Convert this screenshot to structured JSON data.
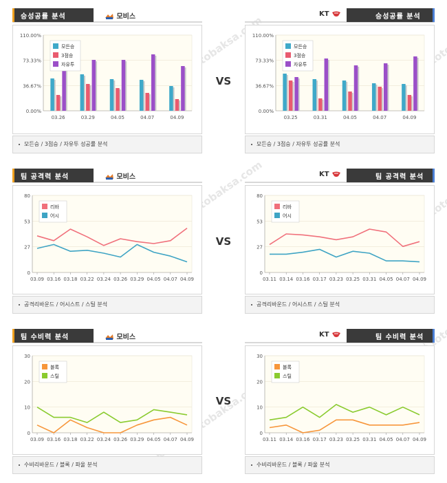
{
  "vs_label": "VS",
  "watermark": "토토박사 totobaksa.com",
  "colors": {
    "header": "#3a3a3a",
    "accent_left": "#f0a01e",
    "accent_right": "#4a7fd6"
  },
  "panels": [
    {
      "id": "p1",
      "title": "승성공률 분석",
      "team": "모비스",
      "icon": "mobis-logo-icon",
      "side": "left",
      "footer": "모든승 / 3점승 / 자유투 성공률 분석",
      "chart_data": {
        "type": "bar",
        "categories": [
          "03.26",
          "03.29",
          "04.05",
          "04.07",
          "04.09"
        ],
        "yticks": [
          "110.00%",
          "73.33%",
          "36.67%",
          "0.00%"
        ],
        "ylim": [
          0,
          110
        ],
        "series": [
          {
            "name": "모든승",
            "color": "#3fa9c9",
            "values": [
              47,
              53,
              46,
              45,
              36
            ]
          },
          {
            "name": "3점승",
            "color": "#e95b6f",
            "values": [
              23,
              39,
              33,
              26,
              17
            ]
          },
          {
            "name": "자유투",
            "color": "#9b4fc8",
            "values": [
              62,
              74,
              74,
              82,
              65
            ]
          }
        ]
      }
    },
    {
      "id": "p2",
      "title": "승성공률 분석",
      "team": "KT",
      "icon": "kt-logo-icon",
      "side": "right",
      "footer": "모든승 / 3점승 / 자유투 성공률 분석",
      "chart_data": {
        "type": "bar",
        "categories": [
          "03.25",
          "03.31",
          "04.05",
          "04.07",
          "04.09"
        ],
        "yticks": [
          "110.00%",
          "73.33%",
          "36.67%",
          "0.00%"
        ],
        "ylim": [
          0,
          110
        ],
        "series": [
          {
            "name": "모든승",
            "color": "#3fa9c9",
            "values": [
              54,
              46,
              44,
              40,
              39
            ]
          },
          {
            "name": "3점승",
            "color": "#e95b6f",
            "values": [
              44,
              18,
              28,
              35,
              23
            ]
          },
          {
            "name": "자유투",
            "color": "#9b4fc8",
            "values": [
              49,
              76,
              66,
              69,
              79
            ]
          }
        ]
      }
    },
    {
      "id": "p3",
      "title": "팀 공격력 분석",
      "team": "모비스",
      "icon": "mobis-logo-icon",
      "side": "left",
      "footer": "공격리바운드 / 어시스트 / 스틸 분석",
      "chart_data": {
        "type": "line",
        "categories": [
          "03.09",
          "03.16",
          "03.18",
          "03.22",
          "03.24",
          "03.26",
          "03.29",
          "04.05",
          "04.07",
          "04.09"
        ],
        "yticks": [
          "80",
          "53",
          "27",
          "0"
        ],
        "ylim": [
          0,
          80
        ],
        "series": [
          {
            "name": "리바",
            "color": "#f0707b",
            "values": [
              38,
              33,
              45,
              37,
              28,
              35,
              32,
              30,
              33,
              46
            ]
          },
          {
            "name": "어시",
            "color": "#3ea4c4",
            "values": [
              25,
              29,
              22,
              23,
              20,
              16,
              29,
              21,
              17,
              11
            ]
          }
        ]
      }
    },
    {
      "id": "p4",
      "title": "팀 공격력 분석",
      "team": "KT",
      "icon": "kt-logo-icon",
      "side": "right",
      "footer": "공격리바운드 / 어시스트 / 스틸 분석",
      "chart_data": {
        "type": "line",
        "categories": [
          "03.11",
          "03.14",
          "03.16",
          "03.17",
          "03.23",
          "03.25",
          "03.31",
          "04.05",
          "04.07",
          "04.09"
        ],
        "yticks": [
          "80",
          "53",
          "27",
          "0"
        ],
        "ylim": [
          0,
          80
        ],
        "series": [
          {
            "name": "리바",
            "color": "#f0707b",
            "values": [
              29,
              40,
              39,
              37,
              34,
              37,
              45,
              42,
              27,
              32
            ]
          },
          {
            "name": "어시",
            "color": "#3ea4c4",
            "values": [
              19,
              19,
              21,
              24,
              16,
              22,
              20,
              12,
              12,
              11
            ]
          }
        ]
      }
    },
    {
      "id": "p5",
      "title": "팀 수비력 분석",
      "team": "모비스",
      "icon": "mobis-logo-icon",
      "side": "left",
      "footer": "수비리바운드 / 블록 / 파울 분석",
      "chart_data": {
        "type": "line",
        "categories": [
          "03.09",
          "03.16",
          "03.18",
          "03.22",
          "03.24",
          "03.26",
          "03.29",
          "04.05",
          "04.07",
          "04.09"
        ],
        "yticks": [
          "30",
          "20",
          "10",
          "0"
        ],
        "ylim": [
          0,
          30
        ],
        "series": [
          {
            "name": "블록",
            "color": "#f7963b",
            "values": [
              3,
              0,
              5,
              2,
              0,
              0,
              3,
              5,
              6,
              3
            ]
          },
          {
            "name": "스틸",
            "color": "#8acb2f",
            "values": [
              10,
              6,
              6,
              4,
              8,
              4,
              5,
              9,
              8,
              7
            ]
          }
        ]
      }
    },
    {
      "id": "p6",
      "title": "팀 수비력 분석",
      "team": "KT",
      "icon": "kt-logo-icon",
      "side": "right",
      "footer": "수비리바운드 / 블록 / 파울 분석",
      "chart_data": {
        "type": "line",
        "categories": [
          "03.11",
          "03.14",
          "03.16",
          "03.17",
          "03.23",
          "03.25",
          "03.31",
          "04.05",
          "04.07",
          "04.09"
        ],
        "yticks": [
          "30",
          "20",
          "10",
          "0"
        ],
        "ylim": [
          0,
          30
        ],
        "series": [
          {
            "name": "블록",
            "color": "#f7963b",
            "values": [
              2,
              3,
              0,
              1,
              5,
              5,
              3,
              3,
              3,
              4
            ]
          },
          {
            "name": "스틸",
            "color": "#8acb2f",
            "values": [
              5,
              6,
              10,
              6,
              11,
              8,
              10,
              7,
              10,
              7
            ]
          }
        ]
      }
    }
  ]
}
